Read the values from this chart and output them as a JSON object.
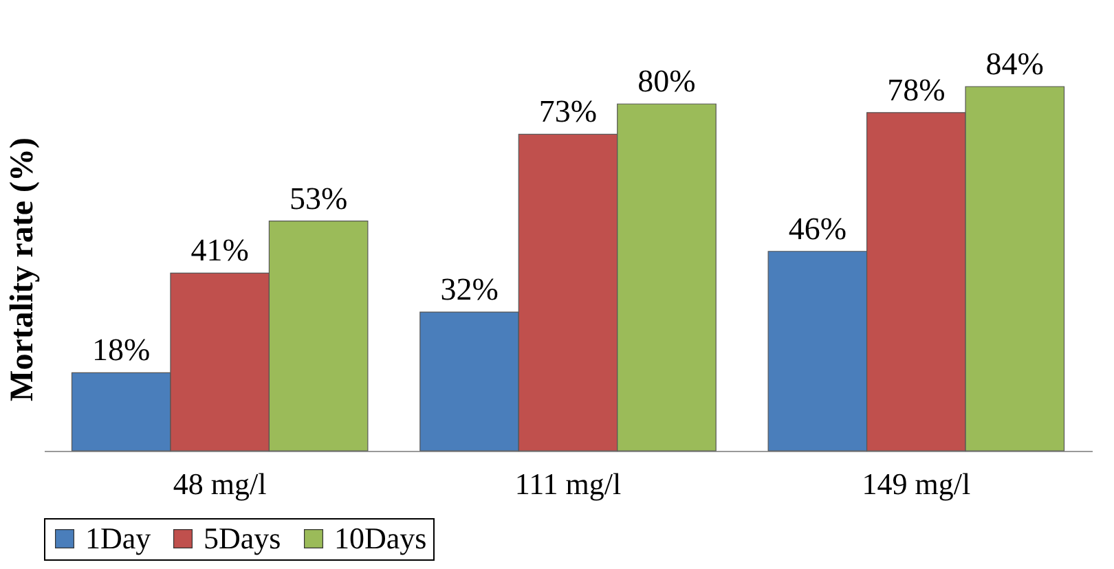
{
  "chart_data": {
    "type": "bar",
    "ylabel": "Mortality rate (%)",
    "categories": [
      "48 mg/l",
      "111 mg/l",
      "149 mg/l"
    ],
    "series": [
      {
        "name": "1Day",
        "color": "#4a7ebb",
        "values": [
          18,
          32,
          46
        ],
        "value_labels": [
          "18%",
          "32%",
          "46%"
        ]
      },
      {
        "name": "5Days",
        "color": "#c0504d",
        "values": [
          41,
          73,
          78
        ],
        "value_labels": [
          "41%",
          "73%",
          "78%"
        ]
      },
      {
        "name": "10Days",
        "color": "#9bbb59",
        "values": [
          53,
          80,
          84
        ],
        "value_labels": [
          "53%",
          "80%",
          "84%"
        ]
      }
    ],
    "legend": "bottom",
    "grid": false
  }
}
